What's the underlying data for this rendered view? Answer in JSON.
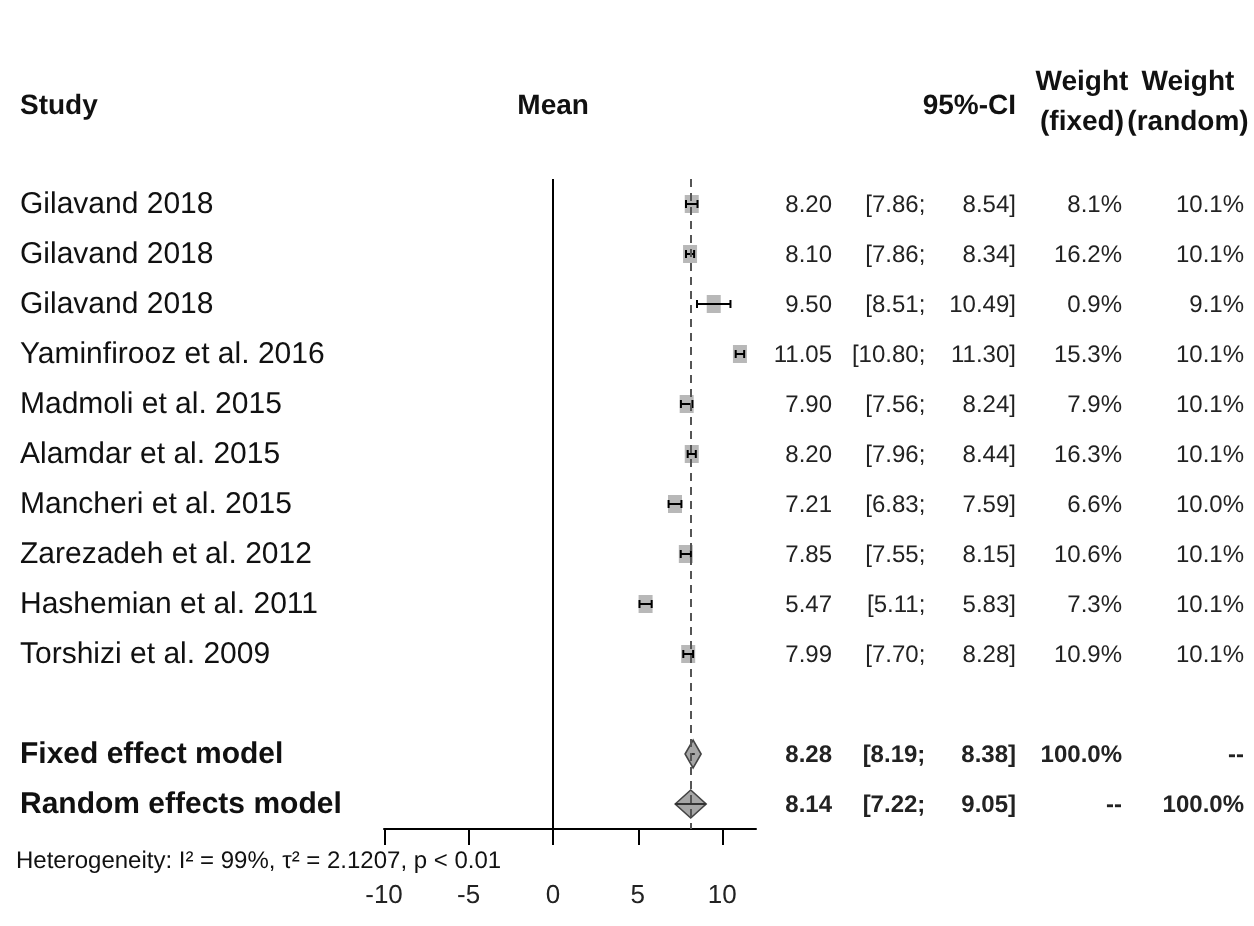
{
  "chart_data": {
    "type": "scatter",
    "orientation": "horizontal",
    "categories": [
      "Gilavand 2018",
      "Gilavand 2018",
      "Gilavand 2018",
      "Yaminfirooz et al. 2016",
      "Madmoli et al. 2015",
      "Alamdar et al. 2015",
      "Mancheri et al. 2015",
      "Zarezadeh et al. 2012",
      "Hashemian et al. 2011",
      "Torshizi et al. 2009",
      null,
      "Fixed effect model",
      "Random effects model"
    ],
    "series": [
      {
        "color": "#b8b8b8",
        "marker": "square",
        "values": [
          8.2,
          8.1,
          9.5,
          11.05,
          7.9,
          8.2,
          7.21,
          7.85,
          5.47,
          7.99,
          null,
          null,
          null
        ],
        "errors": [
          [
            7.86,
            8.54
          ],
          [
            7.86,
            8.34
          ],
          [
            8.51,
            10.49
          ],
          [
            10.8,
            11.3
          ],
          [
            7.56,
            8.24
          ],
          [
            7.96,
            8.44
          ],
          [
            6.83,
            7.59
          ],
          [
            7.55,
            8.15
          ],
          [
            5.11,
            5.83
          ],
          [
            7.7,
            8.28
          ],
          null,
          null,
          null
        ],
        "value_labels": [
          "8.20 [7.86; 8.54] 8.1% 10.1%",
          "8.10 [7.86; 8.34] 16.2% 10.1%",
          "9.50 [8.51; 10.49] 0.9% 9.1%",
          "11.05 [10.80; 11.30] 15.3% 10.1%",
          "7.90 [7.56; 8.24] 7.9% 10.1%",
          "8.20 [7.96; 8.44] 16.3% 10.1%",
          "7.21 [6.83; 7.59] 6.6% 10.0%",
          "7.85 [7.55; 8.15] 10.6% 10.1%",
          "5.47 [5.11; 5.83] 7.3% 10.1%",
          "7.99 [7.70; 8.28] 10.9% 10.1%",
          null,
          null,
          null
        ]
      },
      {
        "color": "#a6a6a6",
        "marker": "diamond",
        "values": [
          null,
          null,
          null,
          null,
          null,
          null,
          null,
          null,
          null,
          null,
          null,
          8.28,
          8.14
        ],
        "errors": [
          null,
          null,
          null,
          null,
          null,
          null,
          null,
          null,
          null,
          null,
          null,
          [
            8.19,
            8.38
          ],
          [
            7.22,
            9.05
          ]
        ],
        "value_labels": [
          null,
          null,
          null,
          null,
          null,
          null,
          null,
          null,
          null,
          null,
          null,
          "8.28 [8.19; 8.38] 100.0% --",
          "8.14 [7.22; 9.05] -- 100.0%"
        ]
      }
    ],
    "xlim": [
      -10,
      12
    ],
    "xticks": [
      -10,
      -5,
      0,
      5,
      10
    ],
    "ref_lines": [
      {
        "axis": "x",
        "value": 0,
        "color": "#000000",
        "line_style": "solid"
      },
      {
        "axis": "x",
        "value": 8.14,
        "color": "#555555",
        "line_style": "dashed"
      }
    ],
    "annotations": [
      "Study",
      "Mean",
      "95%-CI",
      "Weight (fixed)",
      "Weight (random)",
      "Heterogeneity: I² = 99%, τ² = 2.1207, p < 0.01"
    ],
    "grid": false
  }
}
